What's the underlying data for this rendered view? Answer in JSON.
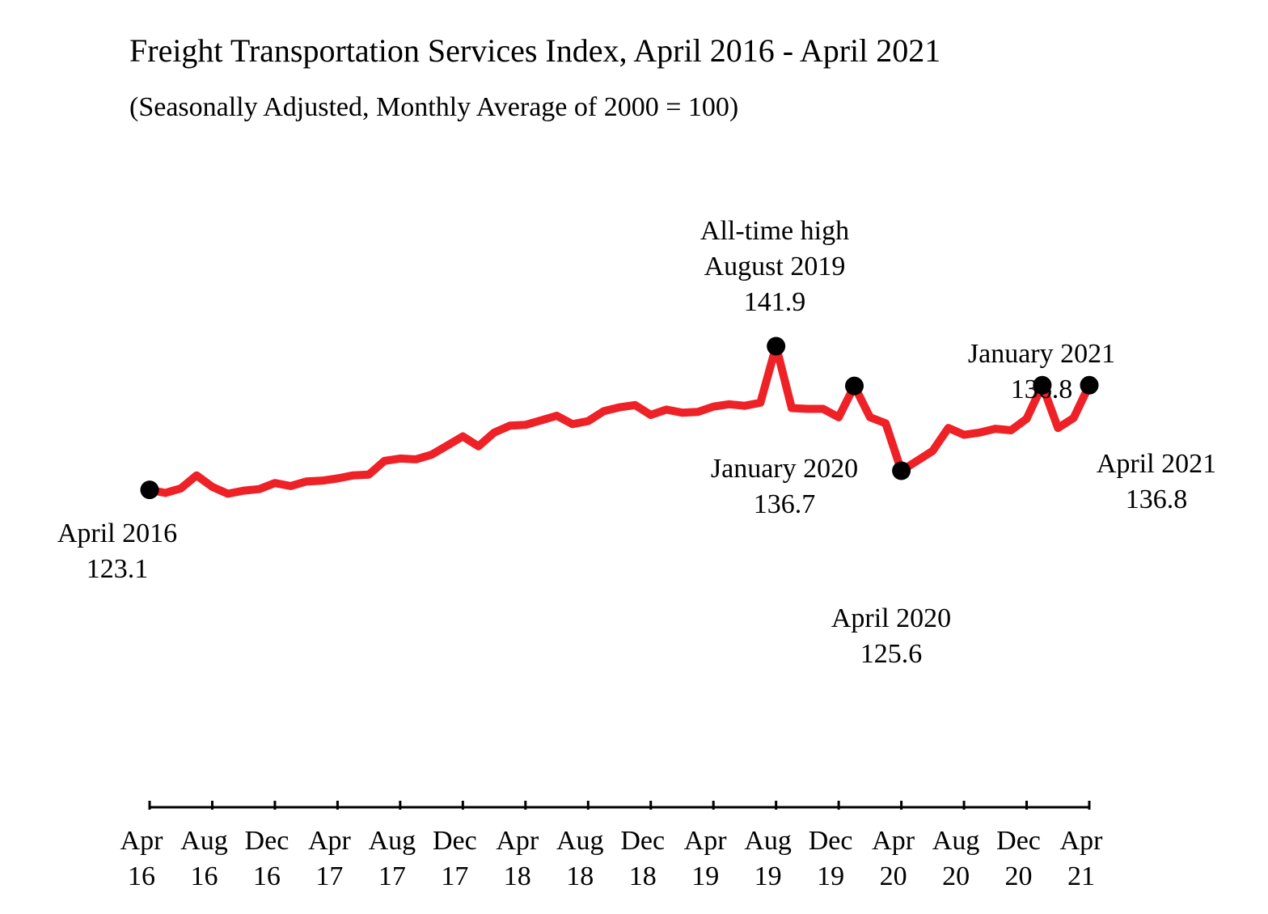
{
  "chart_data": {
    "type": "line",
    "title": "Freight Transportation Services Index, April 2016 - April 2021",
    "subtitle": "(Seasonally Adjusted, Monthly Average of 2000 = 100)",
    "xlabel": "",
    "ylabel": "",
    "grid": false,
    "y_axis_shown": false,
    "ylim": [
      110,
      150
    ],
    "x_start": "2016-04",
    "x_end": "2021-04",
    "x_ticks": [
      {
        "date": "2016-04",
        "line1": "Apr",
        "line2": "16"
      },
      {
        "date": "2016-08",
        "line1": "Aug",
        "line2": "16"
      },
      {
        "date": "2016-12",
        "line1": "Dec",
        "line2": "16"
      },
      {
        "date": "2017-04",
        "line1": "Apr",
        "line2": "17"
      },
      {
        "date": "2017-08",
        "line1": "Aug",
        "line2": "17"
      },
      {
        "date": "2017-12",
        "line1": "Dec",
        "line2": "17"
      },
      {
        "date": "2018-04",
        "line1": "Apr",
        "line2": "18"
      },
      {
        "date": "2018-08",
        "line1": "Aug",
        "line2": "18"
      },
      {
        "date": "2018-12",
        "line1": "Dec",
        "line2": "18"
      },
      {
        "date": "2019-04",
        "line1": "Apr",
        "line2": "19"
      },
      {
        "date": "2019-08",
        "line1": "Aug",
        "line2": "19"
      },
      {
        "date": "2019-12",
        "line1": "Dec",
        "line2": "19"
      },
      {
        "date": "2020-04",
        "line1": "Apr",
        "line2": "20"
      },
      {
        "date": "2020-08",
        "line1": "Aug",
        "line2": "20"
      },
      {
        "date": "2020-12",
        "line1": "Dec",
        "line2": "20"
      },
      {
        "date": "2021-04",
        "line1": "Apr",
        "line2": "21"
      }
    ],
    "series": [
      {
        "color": "#ee2127",
        "x": [
          "2016-04",
          "2016-05",
          "2016-06",
          "2016-07",
          "2016-08",
          "2016-09",
          "2016-10",
          "2016-11",
          "2016-12",
          "2017-01",
          "2017-02",
          "2017-03",
          "2017-04",
          "2017-05",
          "2017-06",
          "2017-07",
          "2017-08",
          "2017-09",
          "2017-10",
          "2017-11",
          "2017-12",
          "2018-01",
          "2018-02",
          "2018-03",
          "2018-04",
          "2018-05",
          "2018-06",
          "2018-07",
          "2018-08",
          "2018-09",
          "2018-10",
          "2018-11",
          "2018-12",
          "2019-01",
          "2019-02",
          "2019-03",
          "2019-04",
          "2019-05",
          "2019-06",
          "2019-07",
          "2019-08",
          "2019-09",
          "2019-10",
          "2019-11",
          "2019-12",
          "2020-01",
          "2020-02",
          "2020-03",
          "2020-04",
          "2020-05",
          "2020-06",
          "2020-07",
          "2020-08",
          "2020-09",
          "2020-10",
          "2020-11",
          "2020-12",
          "2021-01",
          "2021-02",
          "2021-03",
          "2021-04"
        ],
        "values": [
          123.1,
          122.7,
          123.3,
          125.0,
          123.5,
          122.6,
          123.0,
          123.2,
          124.0,
          123.6,
          124.2,
          124.3,
          124.6,
          125.0,
          125.1,
          126.9,
          127.2,
          127.1,
          127.7,
          128.9,
          130.1,
          128.8,
          130.6,
          131.5,
          131.6,
          132.2,
          132.8,
          131.7,
          132.1,
          133.4,
          133.9,
          134.2,
          132.9,
          133.6,
          133.2,
          133.3,
          134.0,
          134.3,
          134.1,
          134.5,
          141.9,
          133.8,
          133.7,
          133.7,
          132.6,
          136.7,
          132.6,
          131.8,
          125.6,
          126.9,
          128.2,
          131.2,
          130.3,
          130.6,
          131.1,
          130.9,
          132.4,
          136.8,
          131.2,
          132.5,
          136.8
        ]
      }
    ],
    "highlights": [
      {
        "date": "2016-04",
        "value": 123.1,
        "lines": [
          "April 2016",
          "123.1"
        ]
      },
      {
        "date": "2019-08",
        "value": 141.9,
        "lines": [
          "All-time high",
          "August 2019",
          "141.9"
        ]
      },
      {
        "date": "2020-01",
        "value": 136.7,
        "lines": [
          "January 2020",
          "136.7"
        ]
      },
      {
        "date": "2020-04",
        "value": 125.6,
        "lines": [
          "April 2020",
          "125.6"
        ]
      },
      {
        "date": "2021-01",
        "value": 136.8,
        "lines": [
          "January 2021",
          "136.8"
        ]
      },
      {
        "date": "2021-04",
        "value": 136.8,
        "lines": [
          "April 2021",
          "136.8"
        ]
      }
    ]
  }
}
